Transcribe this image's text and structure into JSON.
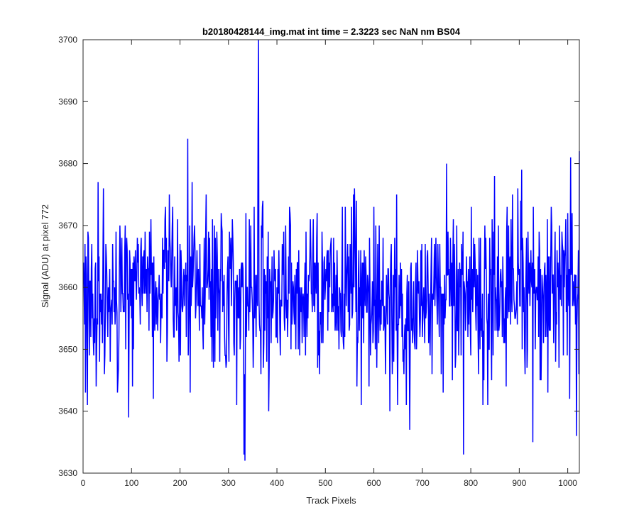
{
  "chart_data": {
    "type": "line",
    "title": "b20180428144_img.mat int time = 2.3223 sec  NaN nm BS04",
    "xlabel": "Track Pixels",
    "ylabel": "Signal (ADU) at pixel 772",
    "xlim": [
      0,
      1024
    ],
    "ylim": [
      3630,
      3700
    ],
    "xticks": [
      0,
      100,
      200,
      300,
      400,
      500,
      600,
      700,
      800,
      900,
      1000
    ],
    "yticks": [
      3630,
      3640,
      3650,
      3660,
      3670,
      3680,
      3690,
      3700
    ],
    "grid": false,
    "box": true,
    "series": [
      {
        "color": "#0000ff",
        "n_points": 1024,
        "mean_approx": 3659,
        "approx_range": [
          3632,
          3700
        ],
        "notable_points": [
          {
            "x": 361,
            "y": 3700
          },
          {
            "x": 360,
            "y": 3685
          },
          {
            "x": 215,
            "y": 3684
          },
          {
            "x": 1023,
            "y": 3682
          },
          {
            "x": 1005,
            "y": 3681
          },
          {
            "x": 749,
            "y": 3680
          },
          {
            "x": 904,
            "y": 3679
          },
          {
            "x": 333,
            "y": 3632
          },
          {
            "x": 331,
            "y": 3633
          },
          {
            "x": 784,
            "y": 3633
          },
          {
            "x": 927,
            "y": 3635
          },
          {
            "x": 1017,
            "y": 3636
          },
          {
            "x": 673,
            "y": 3637
          },
          {
            "x": 93,
            "y": 3639
          },
          {
            "x": 382,
            "y": 3640
          },
          {
            "x": 632,
            "y": 3640
          }
        ]
      }
    ]
  }
}
